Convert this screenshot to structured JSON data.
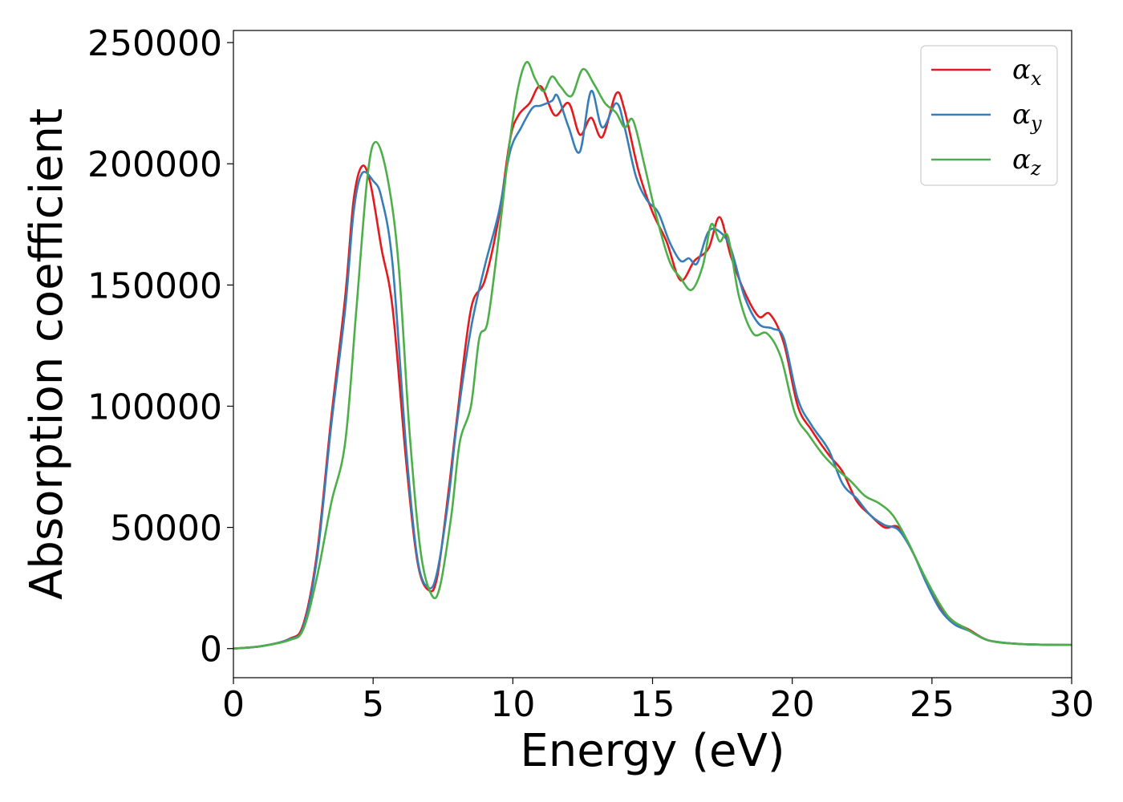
{
  "chart_data": {
    "type": "line",
    "title": "",
    "xlabel": "Energy (eV)",
    "ylabel": "Absorption coefficient",
    "xlim": [
      0,
      30
    ],
    "ylim": [
      -12000,
      255000
    ],
    "xticks": [
      0,
      5,
      10,
      15,
      20,
      25,
      30
    ],
    "yticks": [
      0,
      50000,
      100000,
      150000,
      200000,
      250000
    ],
    "grid": false,
    "legend_position": "top-right",
    "series": [
      {
        "name": "α_x",
        "legend_base": "α",
        "legend_sub": "x",
        "color": "#e41a1c",
        "x": [
          0,
          1,
          2,
          2.5,
          3,
          3.5,
          4,
          4.3,
          4.6,
          4.9,
          5.3,
          5.7,
          6.2,
          6.6,
          7.0,
          7.3,
          7.7,
          8.0,
          8.5,
          9.0,
          9.5,
          9.9,
          10.2,
          10.6,
          11.0,
          11.5,
          12.0,
          12.4,
          12.8,
          13.2,
          13.7,
          14.0,
          14.5,
          15.0,
          15.5,
          16.0,
          16.5,
          17.0,
          17.4,
          17.8,
          18.3,
          18.8,
          19.2,
          19.7,
          20.2,
          20.7,
          21.3,
          21.8,
          22.3,
          22.8,
          23.3,
          23.8,
          24.3,
          24.8,
          25.3,
          25.8,
          26.3,
          27.0,
          28.0,
          29.0,
          30.0
        ],
        "y": [
          0,
          1000,
          4000,
          10000,
          40000,
          95000,
          145000,
          185000,
          199000,
          192000,
          165000,
          140000,
          75000,
          35000,
          24000,
          30000,
          65000,
          95000,
          140000,
          152000,
          178000,
          210000,
          220000,
          225000,
          232000,
          220000,
          225000,
          212000,
          219000,
          211000,
          229000,
          222000,
          197000,
          180000,
          168000,
          152000,
          160000,
          165000,
          178000,
          162000,
          147000,
          137000,
          138000,
          126000,
          100000,
          90000,
          80000,
          73000,
          61000,
          55000,
          50000,
          50000,
          40000,
          28000,
          17000,
          11000,
          8000,
          3500,
          2000,
          1600,
          1500
        ]
      },
      {
        "name": "α_y",
        "legend_base": "α",
        "legend_sub": "y",
        "color": "#377eb8",
        "x": [
          0,
          1,
          2,
          2.5,
          3,
          3.5,
          4,
          4.3,
          4.6,
          5.0,
          5.3,
          5.7,
          6.2,
          6.6,
          7.0,
          7.3,
          7.7,
          8.0,
          8.5,
          9.0,
          9.5,
          9.9,
          10.3,
          10.7,
          11.0,
          11.4,
          11.6,
          12.0,
          12.4,
          12.8,
          13.2,
          13.7,
          14.0,
          14.4,
          14.8,
          15.2,
          15.6,
          16.0,
          16.3,
          16.6,
          17.0,
          17.4,
          17.8,
          18.3,
          18.8,
          19.3,
          19.7,
          20.2,
          20.7,
          21.3,
          21.8,
          22.3,
          22.8,
          23.3,
          23.8,
          24.3,
          24.8,
          25.3,
          25.8,
          26.3,
          27.0,
          28.0,
          29.0,
          30.0
        ],
        "y": [
          0,
          1000,
          3800,
          9000,
          38000,
          92000,
          140000,
          180000,
          196000,
          193000,
          186000,
          158000,
          80000,
          36000,
          25000,
          32000,
          62000,
          93000,
          132000,
          158000,
          180000,
          205000,
          215000,
          223000,
          224000,
          226000,
          228000,
          215000,
          205000,
          230000,
          215000,
          225000,
          215000,
          195000,
          185000,
          180000,
          168000,
          160000,
          161000,
          159000,
          172000,
          172000,
          165000,
          145000,
          134000,
          132000,
          128000,
          103000,
          92000,
          82000,
          68000,
          62000,
          55000,
          51000,
          49000,
          40000,
          27000,
          16000,
          10000,
          7500,
          3500,
          2000,
          1600,
          1500
        ]
      },
      {
        "name": "α_z",
        "legend_base": "α",
        "legend_sub": "z",
        "color": "#4daf4a",
        "x": [
          0,
          1,
          2,
          2.5,
          3,
          3.5,
          4,
          4.4,
          4.8,
          5.1,
          5.5,
          5.9,
          6.3,
          6.7,
          7.1,
          7.4,
          7.8,
          8.1,
          8.5,
          8.8,
          9.1,
          9.5,
          9.9,
          10.2,
          10.5,
          10.8,
          11.1,
          11.4,
          11.7,
          12.1,
          12.5,
          12.9,
          13.3,
          13.7,
          14.0,
          14.3,
          14.7,
          15.1,
          15.6,
          16.0,
          16.4,
          16.8,
          17.1,
          17.4,
          17.7,
          18.1,
          18.6,
          19.1,
          19.6,
          20.1,
          20.6,
          21.1,
          21.6,
          22.1,
          22.6,
          23.1,
          23.6,
          24.1,
          24.6,
          25.1,
          25.6,
          26.1,
          27.0,
          28.0,
          29.0,
          30.0
        ],
        "y": [
          0,
          1000,
          3500,
          8000,
          30000,
          60000,
          85000,
          140000,
          195000,
          209000,
          195000,
          160000,
          90000,
          40000,
          22000,
          26000,
          55000,
          85000,
          100000,
          128000,
          135000,
          170000,
          210000,
          232000,
          242000,
          235000,
          230000,
          236000,
          232000,
          228000,
          239000,
          233000,
          225000,
          221000,
          215000,
          218000,
          200000,
          180000,
          160000,
          153000,
          148000,
          158000,
          175000,
          168000,
          170000,
          145000,
          130000,
          130000,
          120000,
          97000,
          88000,
          80000,
          74000,
          69000,
          63000,
          60000,
          55000,
          45000,
          33000,
          22000,
          13000,
          9000,
          3500,
          2000,
          1600,
          1500
        ]
      }
    ]
  }
}
